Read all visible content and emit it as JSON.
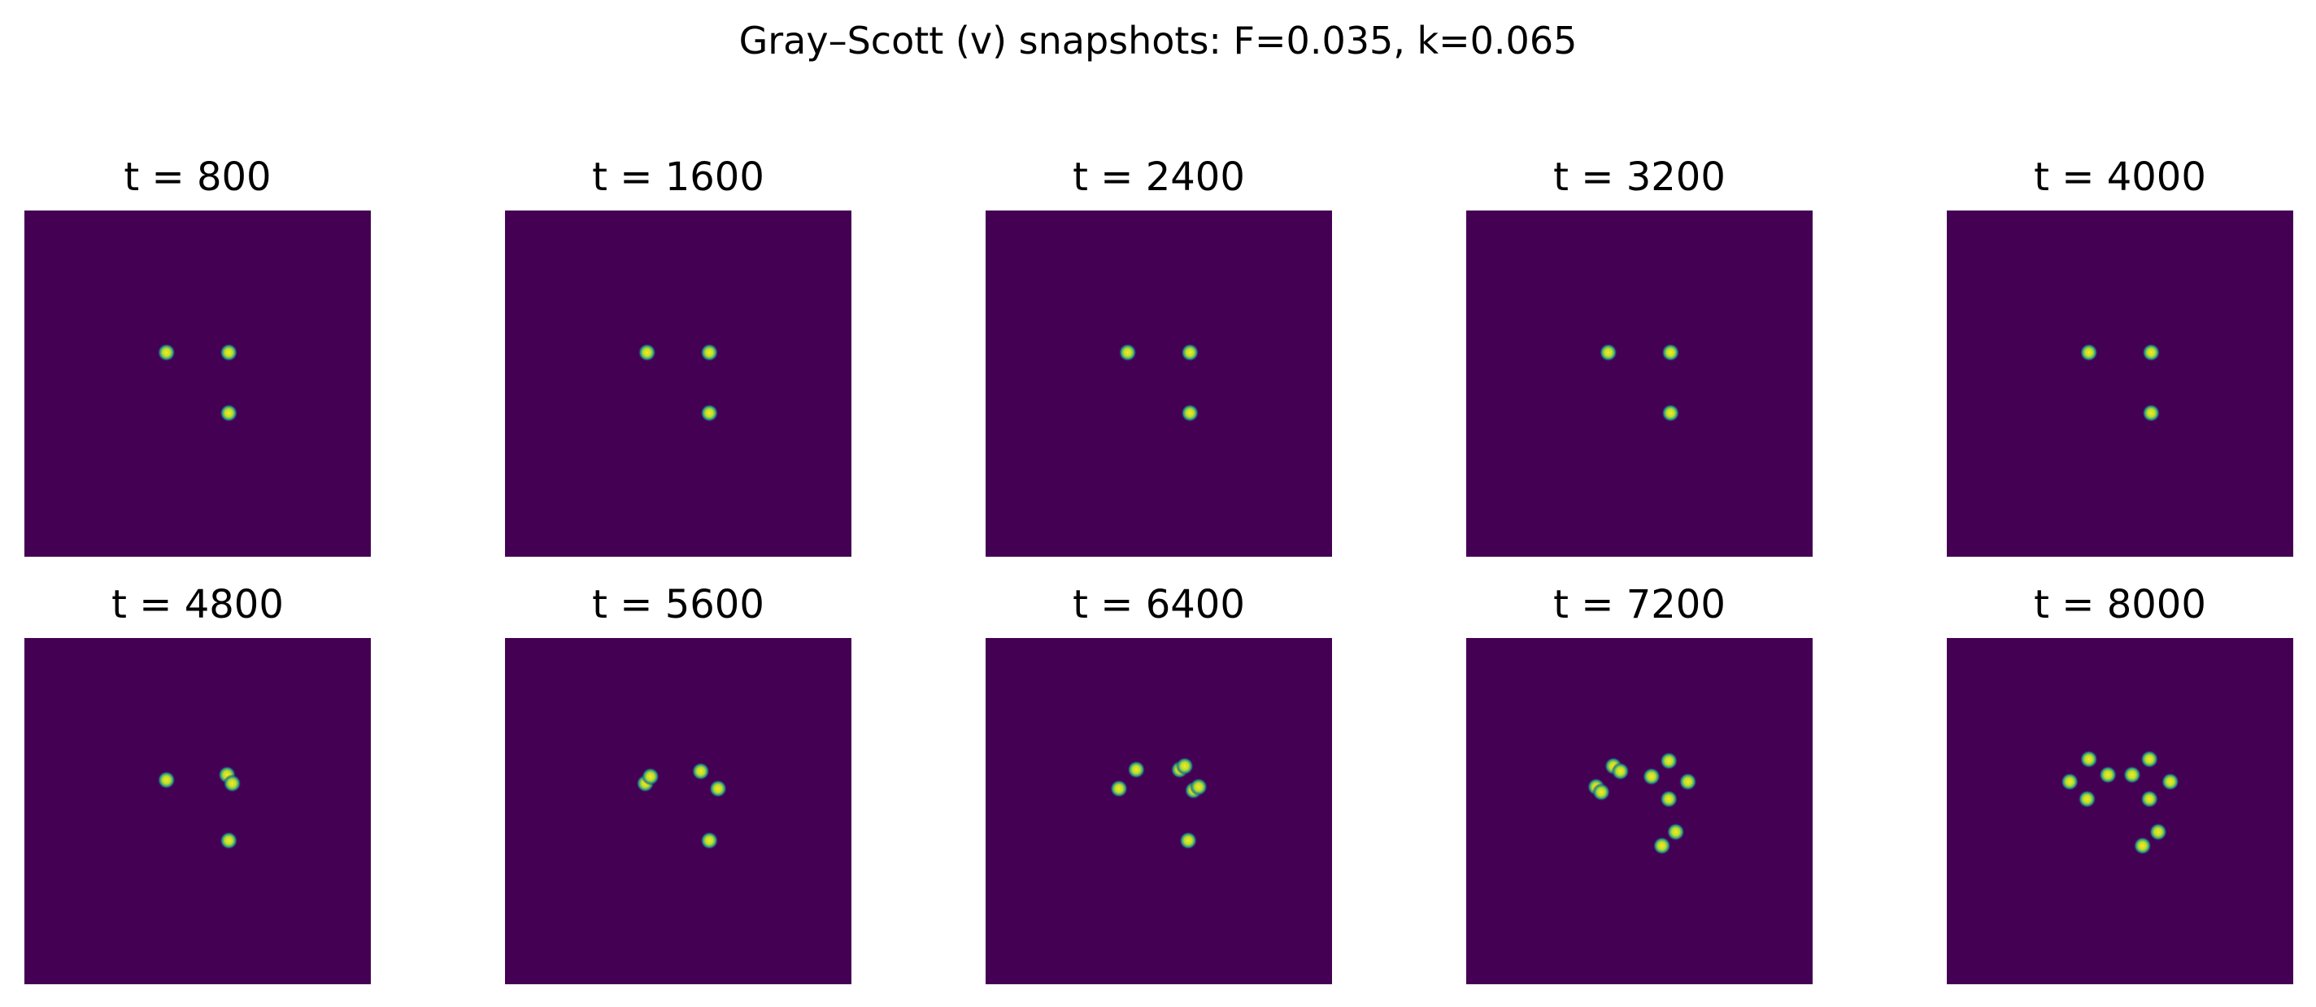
{
  "chart_data": {
    "type": "heatmap",
    "title": "Gray–Scott (v) snapshots: F=0.035, k=0.065",
    "colormap": "viridis",
    "colors": {
      "background": "#440154",
      "spot_edge": "#21918c",
      "spot_core": "#fde725"
    },
    "axes_visible": false,
    "grid": false,
    "domain": {
      "x": [
        0,
        1
      ],
      "y": [
        0,
        1
      ]
    },
    "panels": [
      {
        "label": "t = 800",
        "spots": [
          [
            0.41,
            0.41
          ],
          [
            0.59,
            0.41
          ],
          [
            0.59,
            0.585
          ]
        ]
      },
      {
        "label": "t = 1600",
        "spots": [
          [
            0.41,
            0.41
          ],
          [
            0.59,
            0.41
          ],
          [
            0.59,
            0.585
          ]
        ]
      },
      {
        "label": "t = 2400",
        "spots": [
          [
            0.41,
            0.41
          ],
          [
            0.59,
            0.41
          ],
          [
            0.59,
            0.585
          ]
        ]
      },
      {
        "label": "t = 3200",
        "spots": [
          [
            0.41,
            0.41
          ],
          [
            0.59,
            0.41
          ],
          [
            0.59,
            0.585
          ]
        ]
      },
      {
        "label": "t = 4000",
        "spots": [
          [
            0.41,
            0.41
          ],
          [
            0.59,
            0.41
          ],
          [
            0.59,
            0.585
          ]
        ]
      },
      {
        "label": "t = 4800",
        "spots": [
          [
            0.41,
            0.41
          ],
          [
            0.585,
            0.395
          ],
          [
            0.6,
            0.42
          ],
          [
            0.59,
            0.585
          ]
        ]
      },
      {
        "label": "t = 5600",
        "spots": [
          [
            0.405,
            0.42
          ],
          [
            0.42,
            0.4
          ],
          [
            0.565,
            0.385
          ],
          [
            0.615,
            0.435
          ],
          [
            0.59,
            0.585
          ]
        ]
      },
      {
        "label": "t = 6400",
        "spots": [
          [
            0.385,
            0.435
          ],
          [
            0.435,
            0.38
          ],
          [
            0.56,
            0.38
          ],
          [
            0.575,
            0.37
          ],
          [
            0.6,
            0.44
          ],
          [
            0.615,
            0.43
          ],
          [
            0.585,
            0.585
          ]
        ]
      },
      {
        "label": "t = 7200",
        "spots": [
          [
            0.375,
            0.43
          ],
          [
            0.39,
            0.445
          ],
          [
            0.425,
            0.37
          ],
          [
            0.445,
            0.385
          ],
          [
            0.535,
            0.4
          ],
          [
            0.585,
            0.355
          ],
          [
            0.585,
            0.465
          ],
          [
            0.64,
            0.415
          ],
          [
            0.565,
            0.6
          ],
          [
            0.605,
            0.56
          ]
        ]
      },
      {
        "label": "t = 8000",
        "spots": [
          [
            0.355,
            0.415
          ],
          [
            0.41,
            0.35
          ],
          [
            0.405,
            0.465
          ],
          [
            0.465,
            0.395
          ],
          [
            0.535,
            0.395
          ],
          [
            0.585,
            0.35
          ],
          [
            0.585,
            0.465
          ],
          [
            0.645,
            0.415
          ],
          [
            0.565,
            0.6
          ],
          [
            0.61,
            0.56
          ]
        ]
      }
    ]
  }
}
